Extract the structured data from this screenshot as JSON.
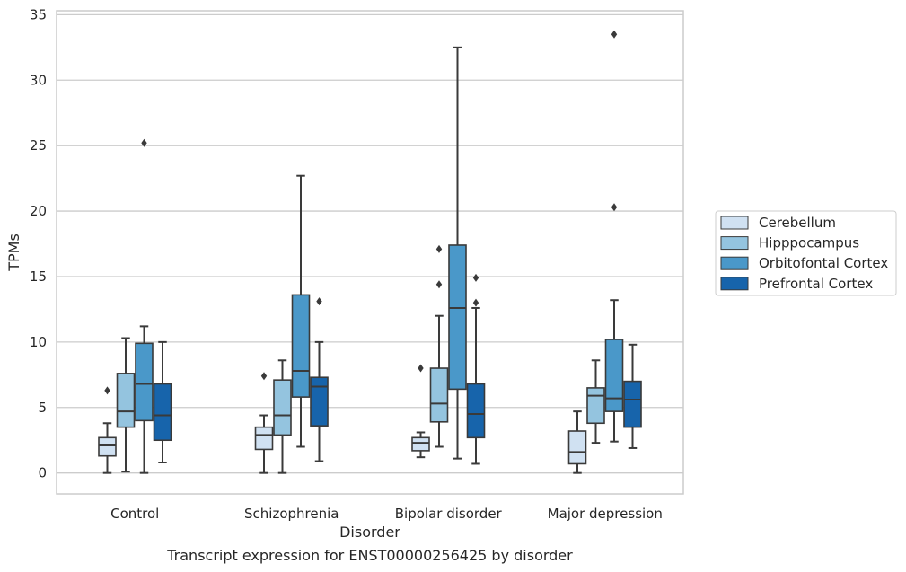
{
  "chart_data": {
    "type": "box",
    "title": "",
    "caption": "Transcript expression for ENST00000256425 by disorder",
    "xlabel": "Disorder",
    "ylabel": "TPMs",
    "ylim": [
      -1.6,
      35.3
    ],
    "yticks": [
      0,
      5,
      10,
      15,
      20,
      25,
      30,
      35
    ],
    "grid": "horizontal",
    "legend_position": "right",
    "categories": [
      "Control",
      "Schizophrenia",
      "Bipolar disorder",
      "Major depression"
    ],
    "colors": {
      "Cerebellum": "#d0e1f2",
      "Hipppocampus": "#94c4df",
      "Orbitofontal Cortex": "#4a98c9",
      "Prefrontal Cortex": "#1764ab",
      "grid": "#cccccc",
      "axes_edge": "#cccccc",
      "box_edge": "#3a3a3a",
      "outlier": "#3a3a3a"
    },
    "series": [
      {
        "name": "Cerebellum",
        "boxes": [
          {
            "whislo": 0.0,
            "q1": 1.3,
            "med": 2.1,
            "q3": 2.7,
            "whishi": 3.8,
            "fliers": [
              6.3
            ]
          },
          {
            "whislo": 0.0,
            "q1": 1.8,
            "med": 2.9,
            "q3": 3.5,
            "whishi": 4.4,
            "fliers": [
              7.4
            ]
          },
          {
            "whislo": 1.2,
            "q1": 1.7,
            "med": 2.3,
            "q3": 2.7,
            "whishi": 3.1,
            "fliers": [
              8.0
            ]
          },
          {
            "whislo": 0.0,
            "q1": 0.7,
            "med": 1.6,
            "q3": 3.2,
            "whishi": 4.7,
            "fliers": []
          }
        ]
      },
      {
        "name": "Hipppocampus",
        "boxes": [
          {
            "whislo": 0.1,
            "q1": 3.5,
            "med": 4.7,
            "q3": 7.6,
            "whishi": 10.3,
            "fliers": []
          },
          {
            "whislo": 0.0,
            "q1": 2.9,
            "med": 4.4,
            "q3": 7.1,
            "whishi": 8.6,
            "fliers": []
          },
          {
            "whislo": 2.0,
            "q1": 3.9,
            "med": 5.3,
            "q3": 8.0,
            "whishi": 12.0,
            "fliers": [
              14.4,
              17.1
            ]
          },
          {
            "whislo": 2.3,
            "q1": 3.8,
            "med": 5.9,
            "q3": 6.5,
            "whishi": 8.6,
            "fliers": []
          }
        ]
      },
      {
        "name": "Orbitofontal Cortex",
        "boxes": [
          {
            "whislo": 0.0,
            "q1": 4.0,
            "med": 6.8,
            "q3": 9.9,
            "whishi": 11.2,
            "fliers": [
              25.2
            ]
          },
          {
            "whislo": 2.0,
            "q1": 5.8,
            "med": 7.8,
            "q3": 13.6,
            "whishi": 22.7,
            "fliers": []
          },
          {
            "whislo": 1.1,
            "q1": 6.4,
            "med": 12.6,
            "q3": 17.4,
            "whishi": 32.5,
            "fliers": []
          },
          {
            "whislo": 2.4,
            "q1": 4.7,
            "med": 5.7,
            "q3": 10.2,
            "whishi": 13.2,
            "fliers": [
              20.3,
              33.5
            ]
          }
        ]
      },
      {
        "name": "Prefrontal Cortex",
        "boxes": [
          {
            "whislo": 0.8,
            "q1": 2.5,
            "med": 4.4,
            "q3": 6.8,
            "whishi": 10.0,
            "fliers": []
          },
          {
            "whislo": 0.9,
            "q1": 3.6,
            "med": 6.6,
            "q3": 7.3,
            "whishi": 10.0,
            "fliers": [
              13.1
            ]
          },
          {
            "whislo": 0.7,
            "q1": 2.7,
            "med": 4.5,
            "q3": 6.8,
            "whishi": 12.6,
            "fliers": [
              13.0,
              14.9
            ]
          },
          {
            "whislo": 1.9,
            "q1": 3.5,
            "med": 5.6,
            "q3": 7.0,
            "whishi": 9.8,
            "fliers": []
          }
        ]
      }
    ]
  }
}
